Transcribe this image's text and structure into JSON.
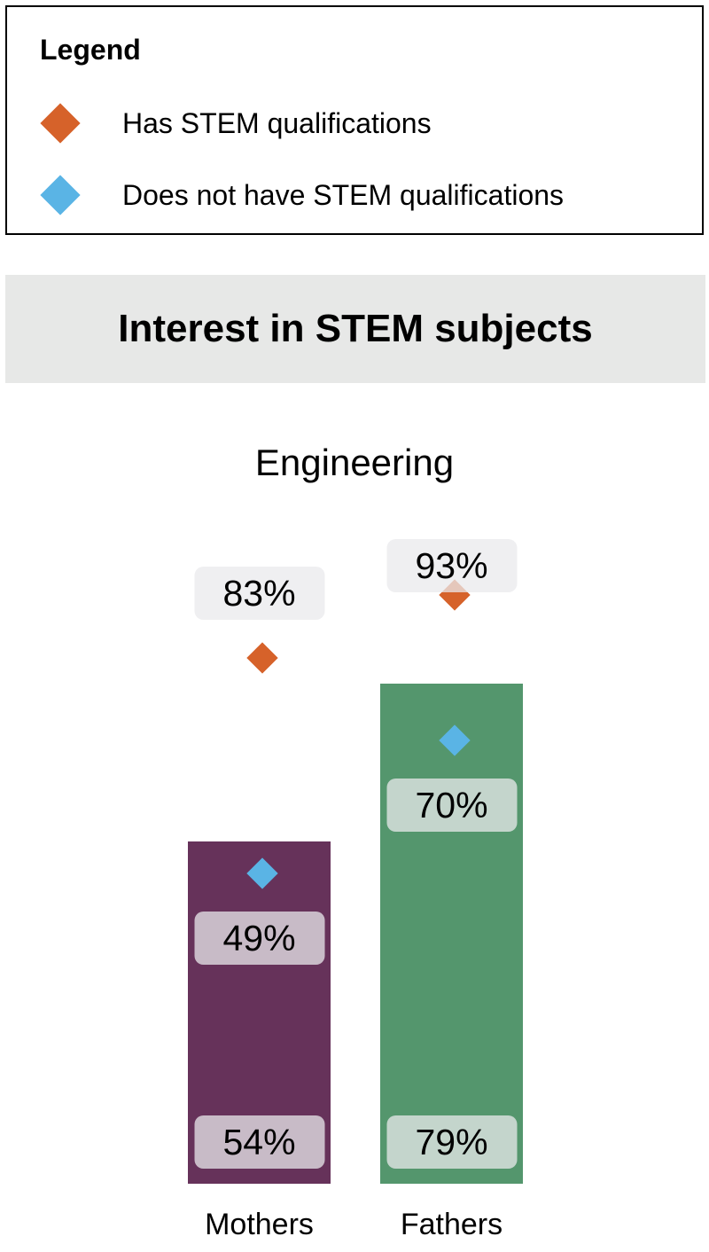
{
  "legend": {
    "title": "Legend",
    "items": [
      {
        "label": "Has STEM qualifications",
        "color": "#d6622a"
      },
      {
        "label": "Does not have STEM qualifications",
        "color": "#5ab4e5"
      }
    ]
  },
  "header": {
    "title": "Interest in STEM subjects"
  },
  "chart_data": {
    "type": "bar",
    "title": "Engineering",
    "categories": [
      "Mothers",
      "Fathers"
    ],
    "unit": "%",
    "ylim": [
      0,
      100
    ],
    "bars": {
      "values": [
        54,
        79
      ],
      "labels": [
        "54%",
        "79%"
      ],
      "colors": [
        "#66325a",
        "#54966d"
      ]
    },
    "series": [
      {
        "name": "Has STEM qualifications",
        "marker": "diamond",
        "color": "#d6622a",
        "values": [
          83,
          93
        ],
        "labels": [
          "83%",
          "93%"
        ]
      },
      {
        "name": "Does not have STEM qualifications",
        "marker": "diamond",
        "color": "#5ab4e5",
        "values": [
          49,
          70
        ],
        "labels": [
          "49%",
          "70%"
        ]
      }
    ]
  }
}
